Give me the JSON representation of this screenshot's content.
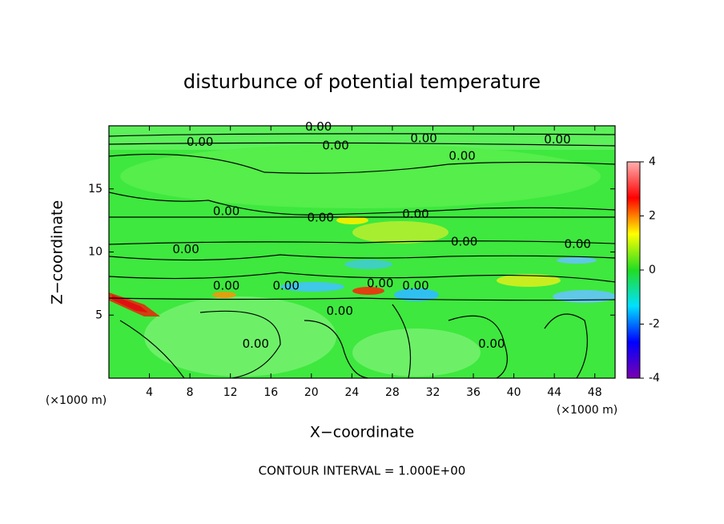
{
  "chart_data": {
    "type": "contour",
    "title": "disturbunce of potential temperature",
    "xlabel": "X−coordinate",
    "ylabel": "Z−coordinate",
    "x_unit_label": "(×1000 m)",
    "y_unit_label": "(×1000 m)",
    "footnote": "CONTOUR INTERVAL = 1.000E+00",
    "xlim": [
      0,
      50
    ],
    "xticks": [
      4,
      8,
      12,
      16,
      20,
      24,
      28,
      32,
      36,
      40,
      44,
      48
    ],
    "ylim": [
      0,
      20
    ],
    "yticks": [
      5,
      10,
      15
    ],
    "colorbar": {
      "lim": [
        -4,
        4
      ],
      "ticks": [
        -4,
        -2,
        0,
        2,
        4
      ],
      "colors": [
        "#7a00b0",
        "#0000ff",
        "#00e0ff",
        "#22dd22",
        "#ffff00",
        "#ff0000",
        "#ffb0b0"
      ]
    },
    "contour_labels": [
      {
        "x": 20.7,
        "y": 19.9,
        "text": "0.00"
      },
      {
        "x": 9.0,
        "y": 18.7,
        "text": "0.00"
      },
      {
        "x": 22.4,
        "y": 18.4,
        "text": "0.00"
      },
      {
        "x": 31.1,
        "y": 19.0,
        "text": "0.00"
      },
      {
        "x": 34.9,
        "y": 17.6,
        "text": "0.00"
      },
      {
        "x": 44.3,
        "y": 18.9,
        "text": "0.00"
      },
      {
        "x": 11.6,
        "y": 13.2,
        "text": "0.00"
      },
      {
        "x": 20.9,
        "y": 12.7,
        "text": "0.00"
      },
      {
        "x": 30.3,
        "y": 13.0,
        "text": "0.00"
      },
      {
        "x": 35.1,
        "y": 10.8,
        "text": "0.00"
      },
      {
        "x": 46.3,
        "y": 10.6,
        "text": "0.00"
      },
      {
        "x": 7.6,
        "y": 10.2,
        "text": "0.00"
      },
      {
        "x": 11.6,
        "y": 7.3,
        "text": "0.00"
      },
      {
        "x": 17.5,
        "y": 7.3,
        "text": "0.00"
      },
      {
        "x": 22.8,
        "y": 5.3,
        "text": "0.00"
      },
      {
        "x": 26.8,
        "y": 7.5,
        "text": "0.00"
      },
      {
        "x": 30.3,
        "y": 7.3,
        "text": "0.00"
      },
      {
        "x": 14.5,
        "y": 2.7,
        "text": "0.00"
      },
      {
        "x": 37.8,
        "y": 2.7,
        "text": "0.00"
      }
    ]
  }
}
